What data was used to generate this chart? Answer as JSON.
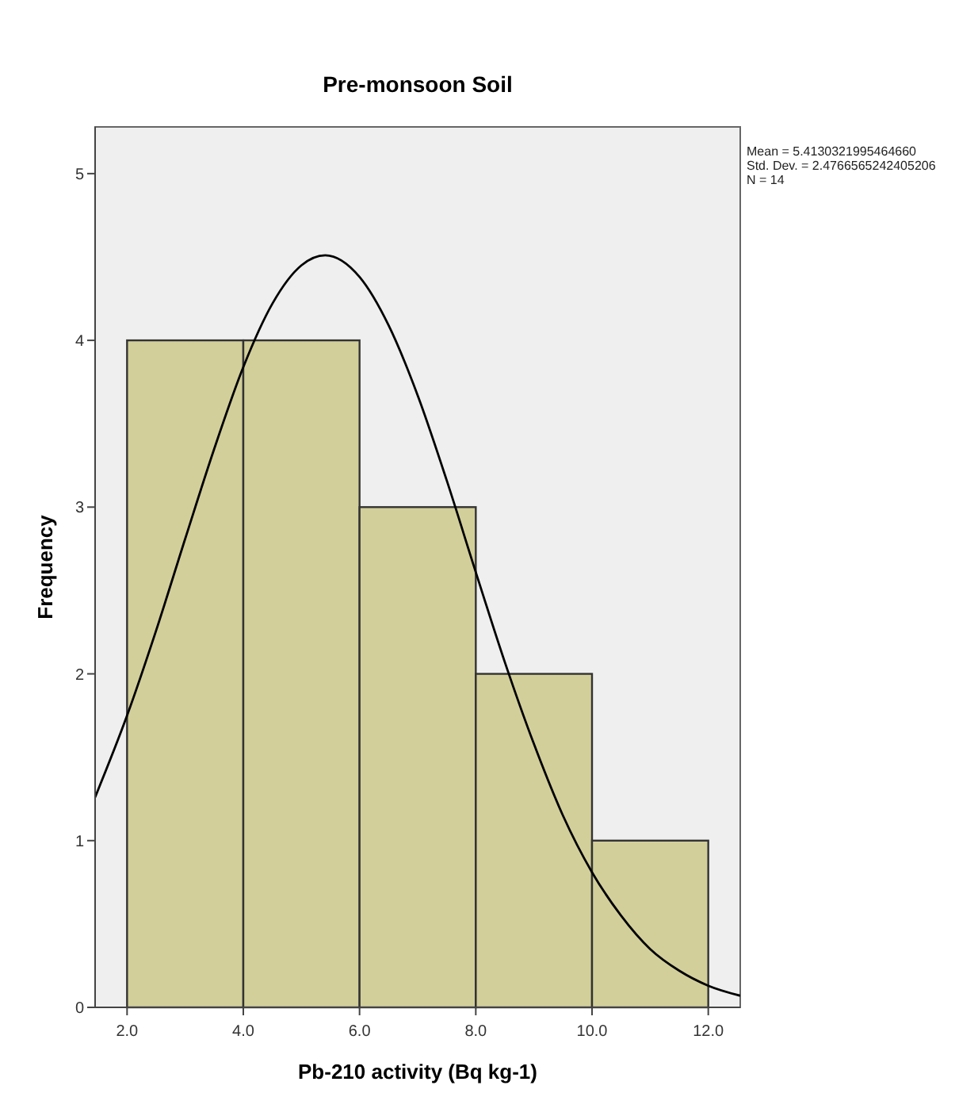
{
  "chart_data": {
    "type": "histogram",
    "title": "Pre-monsoon Soil",
    "xlabel": "Pb-210 activity (Bq kg-1)",
    "ylabel": "Frequency",
    "annotations": [
      "Mean = 5.4130321995464660",
      "Std. Dev. = 2.4766565242405206",
      "N = 14"
    ],
    "bins": [
      2,
      4,
      6,
      8,
      10,
      12
    ],
    "values": [
      4,
      4,
      3,
      2,
      1
    ],
    "color": "#d3cf9a",
    "series": [
      {
        "type": "line",
        "color": "#000000",
        "x": [
          1.45,
          2,
          2.5,
          3,
          3.5,
          4,
          4.5,
          5,
          5.41,
          6,
          6.5,
          7,
          7.5,
          8,
          8.5,
          9,
          9.5,
          10,
          10.5,
          11,
          11.5,
          12,
          12.55
        ],
        "values": [
          1.26,
          1.75,
          2.26,
          2.81,
          3.35,
          3.84,
          4.22,
          4.45,
          4.51,
          4.38,
          4.09,
          3.67,
          3.16,
          2.61,
          2.07,
          1.58,
          1.15,
          0.81,
          0.55,
          0.35,
          0.22,
          0.13,
          0.07
        ]
      }
    ],
    "xlim": [
      1.45,
      12.55
    ],
    "ylim": [
      0,
      5.28
    ],
    "xticks": [
      {
        "value": 2,
        "label": "2.0"
      },
      {
        "value": 4,
        "label": "4.0"
      },
      {
        "value": 6,
        "label": "6.0"
      },
      {
        "value": 8,
        "label": "8.0"
      },
      {
        "value": 10,
        "label": "10.0"
      },
      {
        "value": 12,
        "label": "12.0"
      }
    ],
    "yticks": [
      0,
      1,
      2,
      3,
      4,
      5
    ],
    "grid": false
  }
}
